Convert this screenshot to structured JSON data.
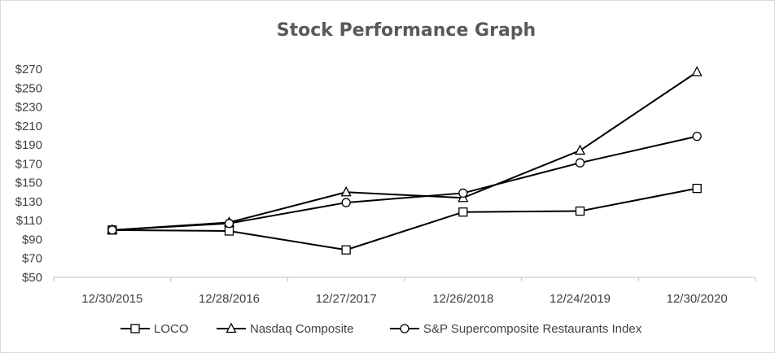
{
  "chart_data": {
    "type": "line",
    "title": "Stock Performance Graph",
    "xlabel": "",
    "ylabel": "",
    "categories": [
      "12/30/2015",
      "12/28/2016",
      "12/27/2017",
      "12/26/2018",
      "12/24/2019",
      "12/30/2020"
    ],
    "y_ticks": [
      "$50",
      "$70",
      "$90",
      "$110",
      "$130",
      "$150",
      "$170",
      "$190",
      "$210",
      "$230",
      "$250",
      "$270"
    ],
    "ylim": [
      50,
      280
    ],
    "grid": false,
    "legend_position": "bottom",
    "series": [
      {
        "name": "LOCO",
        "marker": "square",
        "values": [
          100,
          99,
          79,
          119,
          120,
          144
        ]
      },
      {
        "name": "Nasdaq Composite",
        "marker": "triangle",
        "values": [
          100,
          108,
          140,
          134,
          184,
          267
        ]
      },
      {
        "name": "S&P Supercomposite Restaurants Index",
        "marker": "circle",
        "values": [
          100,
          107,
          129,
          139,
          171,
          199
        ]
      }
    ],
    "colors": {
      "line": "#000000",
      "axis": "#bfbfbf",
      "text": "#404040",
      "title": "#595959"
    }
  }
}
